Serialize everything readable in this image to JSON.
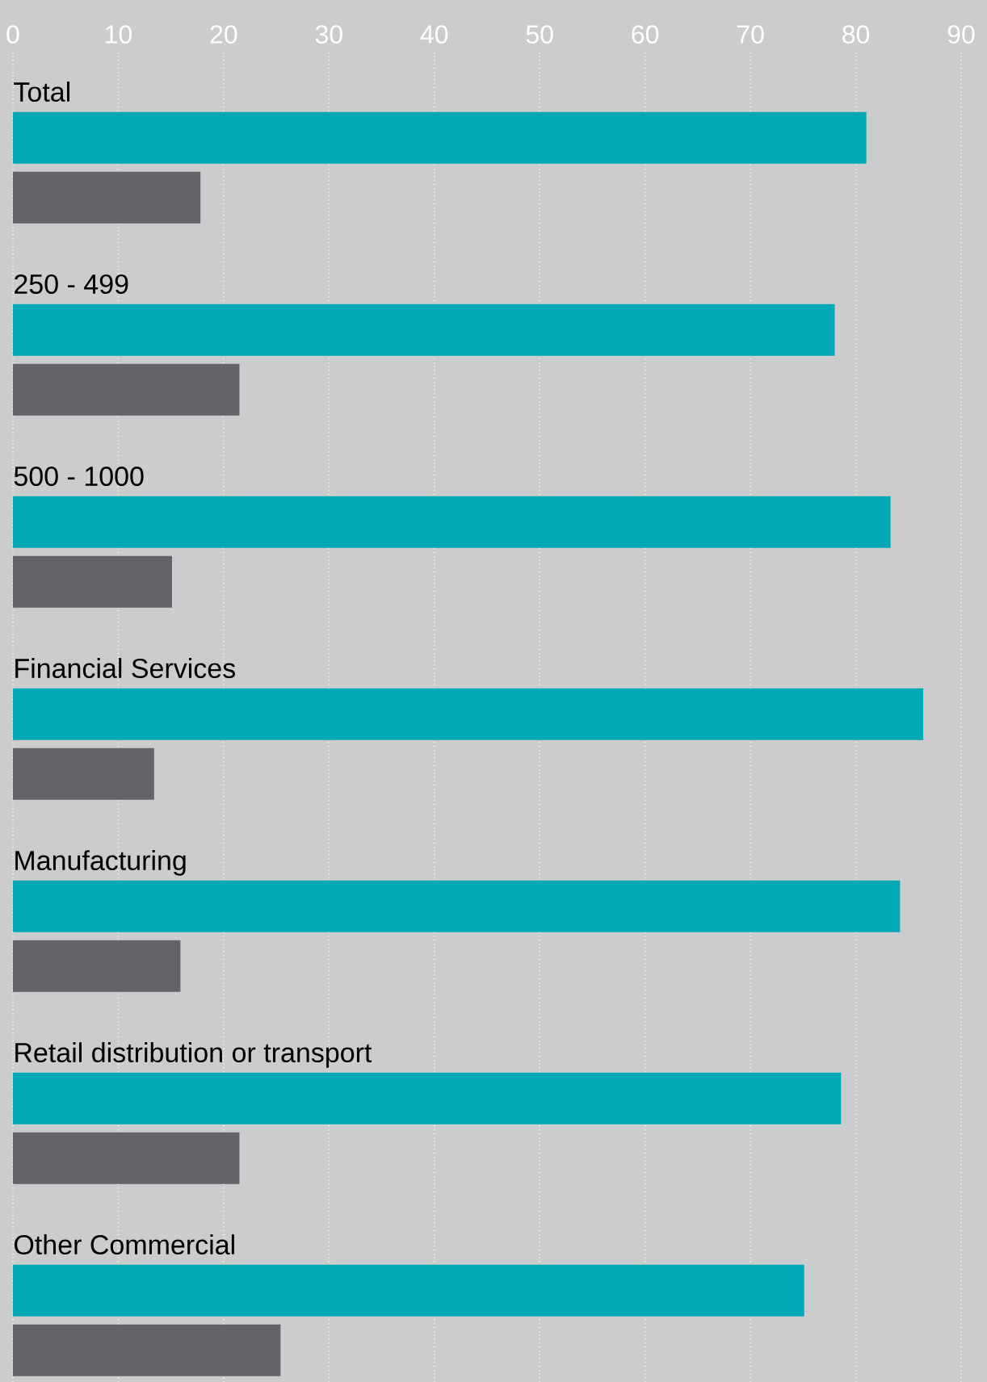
{
  "chart_data": {
    "type": "bar",
    "orientation": "horizontal",
    "categories": [
      "Total",
      "250 - 499",
      "500 - 1000",
      "Financial Services",
      "Manufacturing",
      "Retail distribution or transport",
      "Other Commercial"
    ],
    "series": [
      {
        "color": "#00a9b5",
        "values": [
          81,
          78,
          83.3,
          86.4,
          84.2,
          78.6,
          75.1
        ]
      },
      {
        "color": "#636468",
        "values": [
          17.8,
          21.5,
          15.1,
          13.4,
          15.9,
          21.5,
          25.4
        ]
      }
    ],
    "xlim": [
      0,
      90
    ],
    "xticks": [
      0,
      10,
      20,
      30,
      40,
      50,
      60,
      70,
      80,
      90
    ],
    "grid": "x"
  }
}
